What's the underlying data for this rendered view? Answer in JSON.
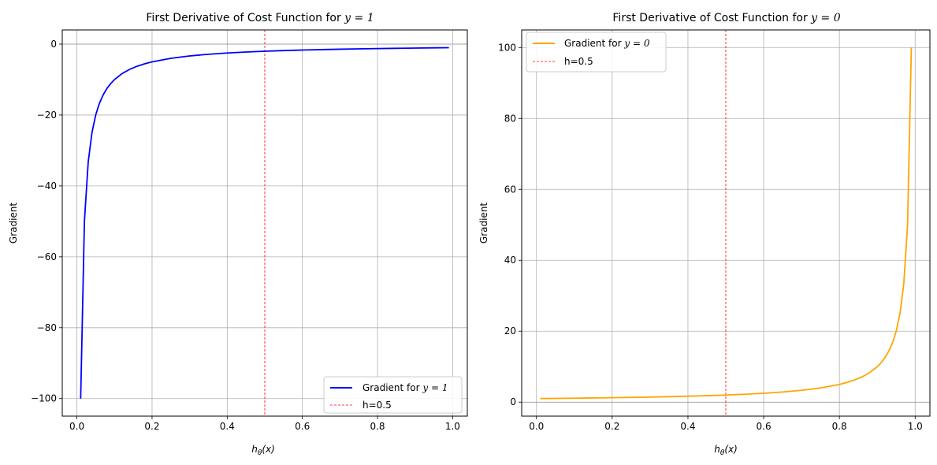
{
  "chart_data": [
    {
      "type": "line",
      "title": "First Derivative of Cost Function for y = 1",
      "title_prefix": "First Derivative of Cost Function for ",
      "title_math": "y = 1",
      "xlabel": "h",
      "xlabel_sub": "θ",
      "xlabel_tail": "(x)",
      "ylabel": "Gradient",
      "xlim": [
        -0.039,
        1.039
      ],
      "ylim": [
        -104.95,
        4.0
      ],
      "xticks": [
        0.0,
        0.2,
        0.4,
        0.6,
        0.8,
        1.0
      ],
      "xtick_labels": [
        "0.0",
        "0.2",
        "0.4",
        "0.6",
        "0.8",
        "1.0"
      ],
      "yticks": [
        -100,
        -80,
        -60,
        -40,
        -20,
        0
      ],
      "ytick_labels": [
        "−100",
        "−80",
        "−60",
        "−40",
        "−20",
        "0"
      ],
      "grid": true,
      "hline_y": 0,
      "legend_position": "lower right",
      "series": [
        {
          "name": "Gradient for y = 1",
          "label_prefix": "Gradient for ",
          "label_math": "y = 1",
          "color": "#0000ff",
          "x": [
            0.01,
            0.02,
            0.03,
            0.04,
            0.05,
            0.06,
            0.07,
            0.08,
            0.09,
            0.1,
            0.12,
            0.14,
            0.16,
            0.18,
            0.2,
            0.25,
            0.3,
            0.35,
            0.4,
            0.45,
            0.5,
            0.55,
            0.6,
            0.65,
            0.7,
            0.75,
            0.8,
            0.85,
            0.9,
            0.95,
            0.99
          ],
          "y": [
            -100.0,
            -50.0,
            -33.33,
            -25.0,
            -20.0,
            -16.67,
            -14.29,
            -12.5,
            -11.11,
            -10.0,
            -8.33,
            -7.14,
            -6.25,
            -5.56,
            -5.0,
            -4.0,
            -3.33,
            -2.86,
            -2.5,
            -2.22,
            -2.0,
            -1.82,
            -1.67,
            -1.54,
            -1.43,
            -1.33,
            -1.25,
            -1.18,
            -1.11,
            -1.05,
            -1.01
          ]
        }
      ],
      "vline": {
        "x": 0.5,
        "label": "h=0.5",
        "color": "#ff0000"
      }
    },
    {
      "type": "line",
      "title": "First Derivative of Cost Function for y = 0",
      "title_prefix": "First Derivative of Cost Function for ",
      "title_math": "y = 0",
      "xlabel": "h",
      "xlabel_sub": "θ",
      "xlabel_tail": "(x)",
      "ylabel": "Gradient",
      "xlim": [
        -0.039,
        1.039
      ],
      "ylim": [
        -3.95,
        104.95
      ],
      "xticks": [
        0.0,
        0.2,
        0.4,
        0.6,
        0.8,
        1.0
      ],
      "xtick_labels": [
        "0.0",
        "0.2",
        "0.4",
        "0.6",
        "0.8",
        "1.0"
      ],
      "yticks": [
        0,
        20,
        40,
        60,
        80,
        100
      ],
      "ytick_labels": [
        "0",
        "20",
        "40",
        "60",
        "80",
        "100"
      ],
      "grid": true,
      "hline_y": 0,
      "legend_position": "upper left",
      "series": [
        {
          "name": "Gradient for y = 0",
          "label_prefix": "Gradient for ",
          "label_math": "y = 0",
          "color": "#ffa500",
          "x": [
            0.01,
            0.05,
            0.1,
            0.15,
            0.2,
            0.25,
            0.3,
            0.35,
            0.4,
            0.45,
            0.5,
            0.55,
            0.6,
            0.65,
            0.7,
            0.75,
            0.8,
            0.82,
            0.84,
            0.86,
            0.88,
            0.9,
            0.91,
            0.92,
            0.93,
            0.94,
            0.95,
            0.96,
            0.97,
            0.98,
            0.99
          ],
          "y": [
            1.01,
            1.05,
            1.11,
            1.18,
            1.25,
            1.33,
            1.43,
            1.54,
            1.67,
            1.82,
            2.0,
            2.22,
            2.5,
            2.86,
            3.33,
            4.0,
            5.0,
            5.56,
            6.25,
            7.14,
            8.33,
            10.0,
            11.11,
            12.5,
            14.29,
            16.67,
            20.0,
            25.0,
            33.33,
            50.0,
            100.0
          ]
        }
      ],
      "vline": {
        "x": 0.5,
        "label": "h=0.5",
        "color": "#ff0000"
      }
    }
  ]
}
